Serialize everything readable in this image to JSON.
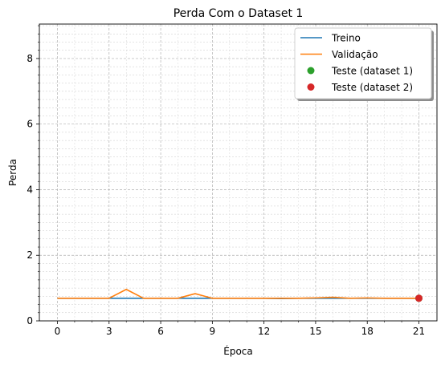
{
  "chart_data": {
    "type": "line",
    "title": "Perda Com o Dataset 1",
    "xlabel": "Época",
    "ylabel": "Perda",
    "xlim": [
      -1.05,
      22.05
    ],
    "ylim": [
      0,
      9.05
    ],
    "xticks": [
      0,
      3,
      6,
      9,
      12,
      15,
      18,
      21
    ],
    "yticks": [
      0,
      2,
      4,
      6,
      8
    ],
    "y_minor_step": 0.25,
    "x_minor_step": 1,
    "grid": true,
    "legend_position": "top-right",
    "series": [
      {
        "name": "Treino",
        "color": "#1f77b4",
        "kind": "line",
        "x": [
          0,
          1,
          2,
          3,
          4,
          5,
          6,
          7,
          8,
          9,
          10,
          11,
          12,
          13,
          14,
          15,
          16,
          17,
          18,
          19,
          20,
          21
        ],
        "values": [
          0.69,
          0.69,
          0.69,
          0.69,
          0.69,
          0.69,
          0.69,
          0.69,
          0.69,
          0.69,
          0.69,
          0.69,
          0.69,
          0.68,
          0.69,
          0.69,
          0.69,
          0.69,
          0.69,
          0.69,
          0.69,
          0.69
        ]
      },
      {
        "name": "Validação",
        "color": "#ff7f0e",
        "kind": "line",
        "x": [
          0,
          1,
          2,
          3,
          4,
          5,
          6,
          7,
          8,
          9,
          10,
          11,
          12,
          13,
          14,
          15,
          16,
          17,
          18,
          19,
          20,
          21
        ],
        "values": [
          0.69,
          0.69,
          0.69,
          0.69,
          0.96,
          0.69,
          0.69,
          0.69,
          0.83,
          0.69,
          0.69,
          0.69,
          0.69,
          0.69,
          0.69,
          0.7,
          0.72,
          0.69,
          0.7,
          0.69,
          0.69,
          0.69
        ]
      },
      {
        "name": "Teste (dataset 1)",
        "color": "#2ca02c",
        "kind": "point",
        "x": [
          21
        ],
        "values": [
          0.69
        ]
      },
      {
        "name": "Teste (dataset 2)",
        "color": "#d62728",
        "kind": "point",
        "x": [
          21
        ],
        "values": [
          0.69
        ]
      }
    ]
  }
}
